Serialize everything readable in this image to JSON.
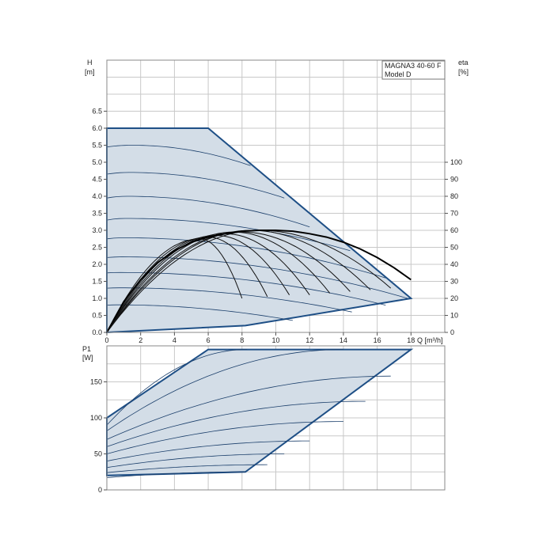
{
  "legend": {
    "line1": "MAGNA3 40-60 F",
    "line2": "Model D"
  },
  "labels": {
    "h_name": "H",
    "h_unit": "[m]",
    "eta_name": "eta",
    "eta_unit": "[%]",
    "q_label": "Q [m³/h]",
    "p_name": "P1",
    "p_unit": "[W]"
  },
  "colors": {
    "fill": "#d3dde7",
    "envelope": "#1e4f86",
    "curves": "#1b3f6b",
    "eta": "#000000"
  },
  "chart_data": [
    {
      "type": "line",
      "panel": "head",
      "xlabel": "Q [m³/h]",
      "ylabel": "H [m]",
      "y2label": "eta [%]",
      "xlim": [
        0,
        20
      ],
      "ylim": [
        0,
        8
      ],
      "y2lim": [
        0,
        100
      ],
      "x_ticks": [
        0,
        2,
        4,
        6,
        8,
        10,
        12,
        14,
        16,
        18
      ],
      "y_ticks": [
        0.0,
        0.5,
        1.0,
        1.5,
        2.0,
        2.5,
        3.0,
        3.5,
        4.0,
        4.5,
        5.0,
        5.5,
        6.0,
        6.5
      ],
      "y2_ticks": [
        0,
        10,
        20,
        30,
        40,
        50,
        60,
        70,
        80,
        90,
        100
      ],
      "envelope": {
        "x": [
          0,
          6,
          18,
          8.2,
          0
        ],
        "y": [
          6.0,
          6.0,
          1.0,
          0.2,
          0
        ]
      },
      "head_curves": [
        {
          "h0": 5.45,
          "hmax": 5.5,
          "qmax": 1.5,
          "qend": 8.5,
          "hend": 4.9
        },
        {
          "h0": 4.65,
          "hmax": 4.7,
          "qmax": 1.3,
          "qend": 10.5,
          "hend": 3.95
        },
        {
          "h0": 3.95,
          "hmax": 4.0,
          "qmax": 1.2,
          "qend": 12.0,
          "hend": 3.1
        },
        {
          "h0": 3.3,
          "hmax": 3.35,
          "qmax": 1.1,
          "qend": 14.4,
          "hend": 2.4
        },
        {
          "h0": 2.75,
          "hmax": 2.78,
          "qmax": 1.0,
          "qend": 16.5,
          "hend": 1.6
        },
        {
          "h0": 2.2,
          "hmax": 2.22,
          "qmax": 0.9,
          "qend": 17.8,
          "hend": 1.0
        },
        {
          "h0": 1.75,
          "hmax": 1.76,
          "qmax": 0.8,
          "qend": 16.5,
          "hend": 0.8
        },
        {
          "h0": 1.3,
          "hmax": 1.31,
          "qmax": 0.7,
          "qend": 14.5,
          "hend": 0.6
        },
        {
          "h0": 0.8,
          "hmax": 0.81,
          "qmax": 0.6,
          "qend": 11.0,
          "hend": 0.35
        }
      ],
      "eta_max_curve": {
        "x": [
          0,
          1,
          2,
          3,
          4,
          5,
          6,
          7,
          8,
          9,
          10,
          11,
          12,
          13,
          14,
          15,
          16,
          17,
          18
        ],
        "eta": [
          0,
          18,
          31,
          41,
          48,
          53,
          56,
          58,
          59.5,
          60,
          60,
          59.5,
          58,
          56,
          53,
          49,
          44,
          38,
          31
        ]
      },
      "eta_curves": [
        {
          "peak_x": 5.5,
          "peak": 55,
          "end_x": 8.0,
          "end": 20
        },
        {
          "peak_x": 6.0,
          "peak": 56,
          "end_x": 9.5,
          "end": 21
        },
        {
          "peak_x": 6.5,
          "peak": 57,
          "end_x": 10.8,
          "end": 22
        },
        {
          "peak_x": 7.0,
          "peak": 58,
          "end_x": 12.0,
          "end": 22
        },
        {
          "peak_x": 7.5,
          "peak": 59,
          "end_x": 13.2,
          "end": 23
        },
        {
          "peak_x": 8.0,
          "peak": 59,
          "end_x": 14.4,
          "end": 24
        },
        {
          "peak_x": 8.5,
          "peak": 60,
          "end_x": 15.6,
          "end": 25
        },
        {
          "peak_x": 9.0,
          "peak": 60,
          "end_x": 16.8,
          "end": 26
        }
      ]
    },
    {
      "type": "line",
      "panel": "power",
      "xlabel": "",
      "ylabel": "P1 [W]",
      "xlim": [
        0,
        20
      ],
      "ylim": [
        0,
        200
      ],
      "y_ticks": [
        0,
        50,
        100,
        150
      ],
      "envelope": {
        "x": [
          0,
          6,
          18,
          8.2,
          0
        ],
        "y": [
          100,
          195,
          195,
          25,
          20
        ]
      },
      "power_curves": [
        {
          "p0": 90,
          "qend": 8.3,
          "pend": 195
        },
        {
          "p0": 82,
          "qend": 14.0,
          "pend": 195
        },
        {
          "p0": 70,
          "qend": 16.8,
          "pend": 158
        },
        {
          "p0": 60,
          "qend": 15.3,
          "pend": 123
        },
        {
          "p0": 50,
          "qend": 14.0,
          "pend": 95
        },
        {
          "p0": 40,
          "qend": 12.0,
          "pend": 68
        },
        {
          "p0": 31,
          "qend": 10.5,
          "pend": 50
        },
        {
          "p0": 24,
          "qend": 9.5,
          "pend": 35
        },
        {
          "p0": 17,
          "qend": 8.2,
          "pend": 25
        }
      ]
    }
  ]
}
